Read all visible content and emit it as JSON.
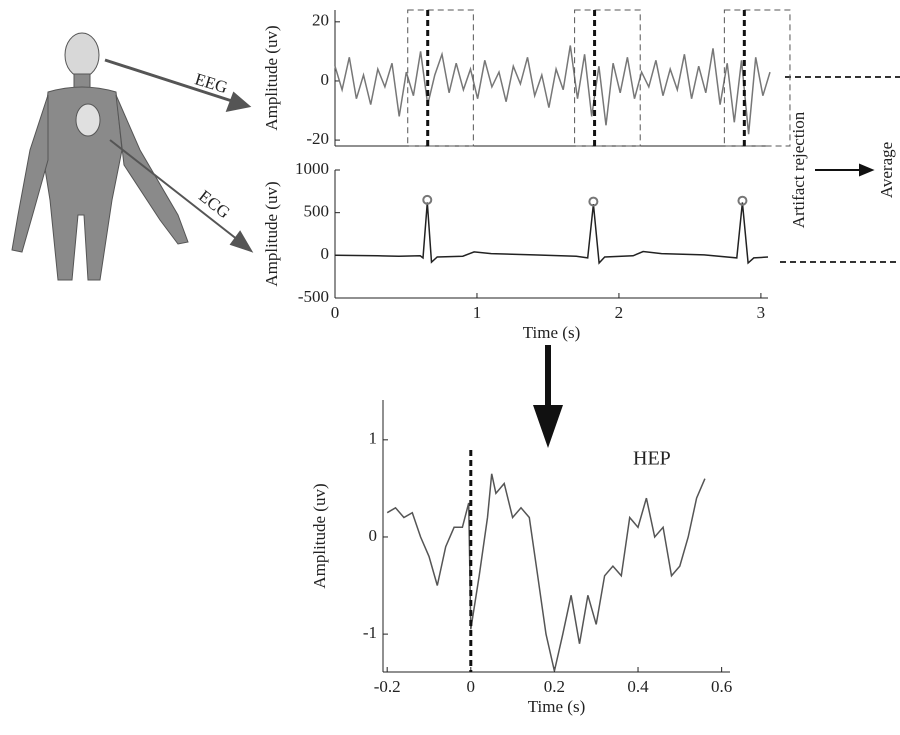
{
  "chart_data": [
    {
      "type": "line",
      "ylabel": "Amplitude (uv)",
      "color": "#777777",
      "xlim": [
        0,
        3.05
      ],
      "ylim": [
        -22,
        24
      ],
      "yticks": [
        -20,
        0,
        20
      ],
      "epoch_window": [
        -0.14,
        0.32
      ],
      "x": [
        0,
        0.05,
        0.1,
        0.15,
        0.2,
        0.25,
        0.3,
        0.35,
        0.4,
        0.45,
        0.5,
        0.55,
        0.6,
        0.65,
        0.7,
        0.75,
        0.8,
        0.85,
        0.9,
        0.95,
        1.0,
        1.05,
        1.1,
        1.15,
        1.2,
        1.25,
        1.3,
        1.35,
        1.4,
        1.45,
        1.5,
        1.55,
        1.6,
        1.65,
        1.7,
        1.75,
        1.8,
        1.85,
        1.9,
        1.95,
        2.0,
        2.05,
        2.1,
        2.15,
        2.2,
        2.25,
        2.3,
        2.35,
        2.4,
        2.45,
        2.5,
        2.55,
        2.6,
        2.65,
        2.7,
        2.75,
        2.8,
        2.85,
        2.9,
        2.95,
        3.0,
        3.05
      ],
      "values": [
        5,
        -3,
        8,
        -6,
        2,
        -8,
        4,
        -2,
        6,
        -12,
        3,
        -5,
        10,
        -8,
        2,
        9,
        -4,
        6,
        -3,
        4,
        -6,
        7,
        -2,
        3,
        -7,
        5,
        -1,
        8,
        -5,
        2,
        -9,
        4,
        -3,
        12,
        -6,
        9,
        -12,
        5,
        -15,
        6,
        -4,
        8,
        -6,
        3,
        -2,
        7,
        -5,
        4,
        -3,
        9,
        -6,
        5,
        -4,
        11,
        -8,
        6,
        -14,
        7,
        -18,
        8,
        -5,
        3
      ]
    },
    {
      "type": "line",
      "ylabel": "Amplitude (uv)",
      "xlabel": "Time (s)",
      "color": "#222222",
      "xlim": [
        0,
        3.05
      ],
      "ylim": [
        -500,
        1000
      ],
      "xticks": [
        0,
        1,
        2,
        3
      ],
      "yticks": [
        -500,
        0,
        500,
        1000
      ],
      "x": [
        0,
        0.3,
        0.45,
        0.6,
        0.62,
        0.65,
        0.68,
        0.72,
        0.9,
        0.98,
        1.1,
        1.4,
        1.7,
        1.78,
        1.82,
        1.86,
        1.9,
        2.1,
        2.17,
        2.3,
        2.6,
        2.83,
        2.87,
        2.91,
        2.95,
        3.05
      ],
      "values": [
        0,
        -5,
        -10,
        -5,
        -30,
        620,
        -80,
        -20,
        -10,
        40,
        20,
        5,
        -10,
        -30,
        600,
        -90,
        -20,
        -5,
        45,
        20,
        5,
        -30,
        620,
        -90,
        -30,
        -20
      ],
      "markers": {
        "x": [
          0.65,
          1.82,
          2.87
        ],
        "values": [
          650,
          630,
          640
        ]
      }
    },
    {
      "type": "line",
      "title": "HEP",
      "ylabel": "Amplitude (uv)",
      "xlabel": "Time (s)",
      "color": "#555555",
      "xlim": [
        -0.21,
        0.62
      ],
      "ylim": [
        -1.39,
        1.41
      ],
      "xticks": [
        -0.2,
        0,
        0.2,
        0.4,
        0.6
      ],
      "yticks": [
        -1,
        0,
        1
      ],
      "x": [
        -0.2,
        -0.18,
        -0.16,
        -0.14,
        -0.12,
        -0.1,
        -0.08,
        -0.06,
        -0.04,
        -0.02,
        -0.005,
        0,
        0.02,
        0.04,
        0.05,
        0.06,
        0.08,
        0.1,
        0.12,
        0.14,
        0.16,
        0.18,
        0.2,
        0.22,
        0.24,
        0.26,
        0.28,
        0.3,
        0.32,
        0.34,
        0.36,
        0.38,
        0.4,
        0.42,
        0.44,
        0.46,
        0.48,
        0.5,
        0.52,
        0.54,
        0.56
      ],
      "values": [
        0.25,
        0.3,
        0.2,
        0.25,
        0,
        -0.2,
        -0.5,
        -0.1,
        0.1,
        0.1,
        0.35,
        -0.95,
        -0.4,
        0.2,
        0.65,
        0.45,
        0.55,
        0.2,
        0.3,
        0.2,
        -0.4,
        -1,
        -1.38,
        -1,
        -0.6,
        -1.1,
        -0.6,
        -0.9,
        -0.4,
        -0.3,
        -0.4,
        0.2,
        0.1,
        0.4,
        0,
        0.1,
        -0.4,
        -0.3,
        0,
        0.4,
        0.6
      ]
    }
  ],
  "labels": {
    "eeg": "EEG",
    "ecg": "ECG",
    "artifact": "Artifact rejection",
    "average": "Average"
  }
}
